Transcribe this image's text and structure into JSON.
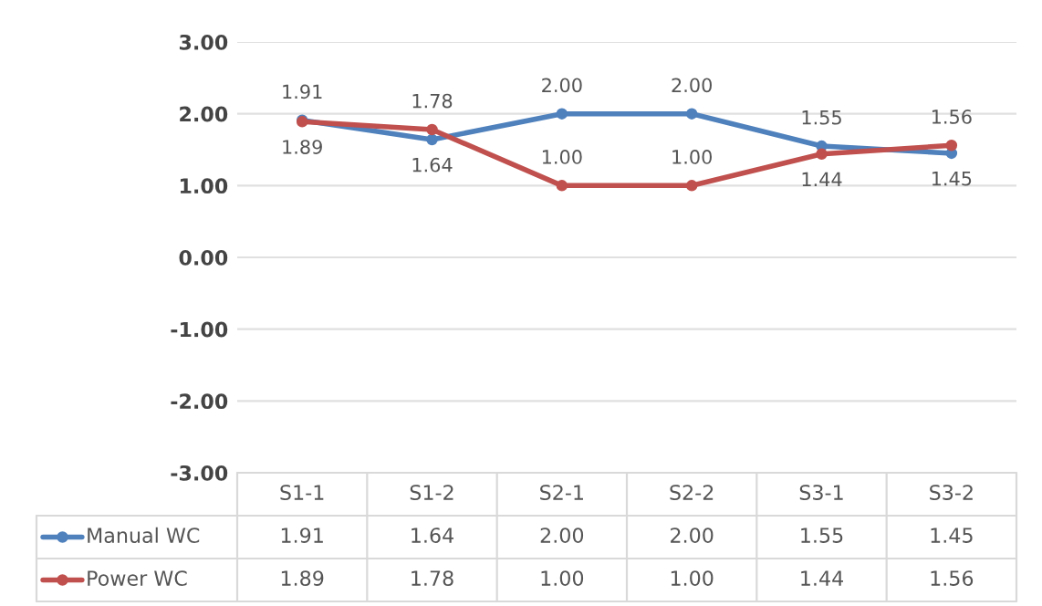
{
  "chart_data": {
    "type": "line",
    "categories": [
      "S1-1",
      "S1-2",
      "S2-1",
      "S2-2",
      "S3-1",
      "S3-2"
    ],
    "series": [
      {
        "name": "Manual WC",
        "color": "#4f81bd",
        "values": [
          1.91,
          1.64,
          2.0,
          2.0,
          1.55,
          1.45
        ],
        "value_labels": [
          "1.91",
          "1.64",
          "2.00",
          "2.00",
          "1.55",
          "1.45"
        ]
      },
      {
        "name": "Power WC",
        "color": "#c0504d",
        "values": [
          1.89,
          1.78,
          1.0,
          1.0,
          1.44,
          1.56
        ],
        "value_labels": [
          "1.89",
          "1.78",
          "1.00",
          "1.00",
          "1.44",
          "1.56"
        ]
      }
    ],
    "ylim": [
      -3,
      3
    ],
    "yticks": [
      {
        "value": -3,
        "label": "-3.00"
      },
      {
        "value": -2,
        "label": "-2.00"
      },
      {
        "value": -1,
        "label": "-1.00"
      },
      {
        "value": 0,
        "label": "0.00"
      },
      {
        "value": 1,
        "label": "1.00"
      },
      {
        "value": 2,
        "label": "2.00"
      },
      {
        "value": 3,
        "label": "3.00"
      }
    ],
    "grid": "y",
    "legend": "bottom",
    "marker": "circle",
    "line_style": "solid",
    "tick_labels": "y"
  }
}
